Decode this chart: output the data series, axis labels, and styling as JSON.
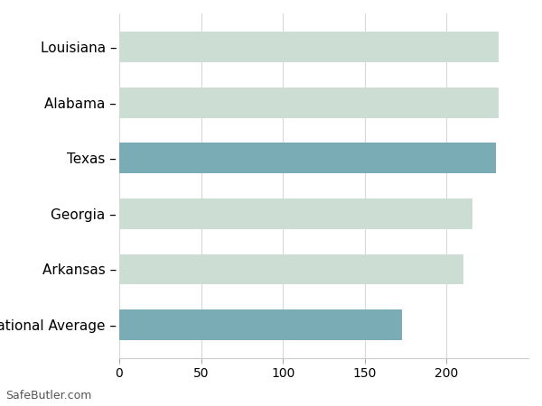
{
  "categories": [
    "Louisiana",
    "Alabama",
    "Texas",
    "Georgia",
    "Arkansas",
    "National Average"
  ],
  "values": [
    232,
    232,
    230,
    216,
    210,
    173
  ],
  "bar_colors": [
    "#ccddd3",
    "#ccddd3",
    "#7aacb5",
    "#ccddd3",
    "#ccddd3",
    "#7aacb5"
  ],
  "xlim": [
    0,
    250
  ],
  "xticks": [
    0,
    50,
    100,
    150,
    200
  ],
  "background_color": "#ffffff",
  "grid_color": "#d8d8d8",
  "bar_height": 0.55,
  "label_fontsize": 11,
  "tick_fontsize": 10,
  "watermark": "SafeButler.com"
}
